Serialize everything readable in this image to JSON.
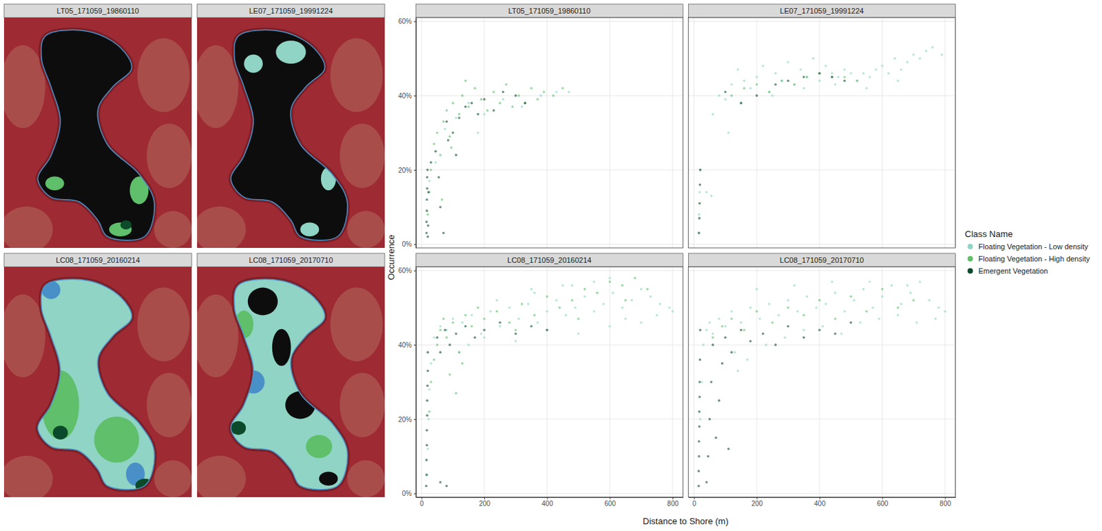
{
  "chart_data": {
    "type": "scatter",
    "x_label": "Distance to Shore (m)",
    "y_label": "Occurrence",
    "legend_title": "Class Name",
    "legend": "right",
    "grid": true,
    "xlim": [
      -18,
      833
    ],
    "ylim": [
      -1,
      61
    ],
    "xticks": [
      0,
      200,
      400,
      600,
      800
    ],
    "yticks": [
      {
        "value": 0,
        "label": "0%"
      },
      {
        "value": 20,
        "label": "20%"
      },
      {
        "value": 40,
        "label": "40%"
      },
      {
        "value": 60,
        "label": "60%"
      }
    ],
    "series": [
      {
        "name": "Floating Vegetation - Low density",
        "color": "#8fd4c4"
      },
      {
        "name": "Floating Vegetation - High density",
        "color": "#5fbf6a"
      },
      {
        "name": "Emergent Vegetation",
        "color": "#0b4a2a"
      }
    ],
    "panels": [
      {
        "title": "LT05_171059_19860110",
        "series": [
          {
            "x": [
              25,
              45,
              75,
              110,
              150,
              200,
              260,
              320,
              380,
              430,
              470,
              180
            ],
            "values": [
              17,
              22,
              31,
              34,
              38,
              35,
              39,
              37,
              40,
              41,
              41,
              30
            ]
          },
          {
            "x": [
              20,
              25,
              30,
              40,
              50,
              60,
              70,
              80,
              90,
              100,
              120,
              130,
              150,
              170,
              190,
              210,
              230,
              250,
              270,
              290,
              310,
              330,
              350,
              370,
              390,
              420,
              450,
              140,
              65,
              95
            ],
            "values": [
              8,
              14,
              20,
              27,
              30,
              24,
              33,
              36,
              29,
              38,
              35,
              40,
              37,
              42,
              39,
              36,
              41,
              38,
              43,
              37,
              40,
              38,
              42,
              39,
              41,
              40,
              42,
              44,
              12,
              26
            ]
          },
          {
            "x": [
              16,
              16,
              17,
              17,
              18,
              18,
              19,
              20,
              21,
              22,
              30,
              45,
              55,
              70,
              85,
              100,
              120,
              140,
              160,
              180,
              200,
              230,
              260,
              300,
              330,
              80,
              110,
              60
            ],
            "values": [
              3,
              6,
              9,
              12,
              15,
              18,
              20,
              2,
              5,
              14,
              22,
              25,
              18,
              3,
              28,
              30,
              34,
              37,
              38,
              35,
              39,
              36,
              41,
              40,
              38,
              33,
              24,
              10
            ]
          }
        ]
      },
      {
        "title": "LE07_171059_19991224",
        "series": [
          {
            "x": [
              15,
              16,
              18,
              20,
              40,
              55,
              60,
              80,
              100,
              120,
              140,
              160,
              180,
              200,
              220,
              240,
              260,
              280,
              300,
              320,
              340,
              360,
              380,
              400,
              420,
              440,
              460,
              480,
              500,
              520,
              540,
              560,
              580,
              600,
              620,
              640,
              660,
              680,
              700,
              720,
              740,
              760,
              790,
              150,
              250,
              350,
              450,
              550,
              650,
              110
            ],
            "values": [
              3,
              8,
              14,
              20,
              14,
              13,
              35,
              40,
              39,
              43,
              47,
              44,
              42,
              45,
              48,
              41,
              46,
              44,
              49,
              43,
              47,
              45,
              50,
              44,
              48,
              46,
              45,
              47,
              46,
              44,
              46,
              45,
              47,
              48,
              46,
              50,
              47,
              49,
              51,
              50,
              52,
              53,
              51,
              38,
              40,
              42,
              43,
              42,
              44,
              30
            ]
          },
          {
            "x": [
              120,
              160,
              200,
              240,
              280,
              320,
              360,
              400,
              440,
              480,
              520
            ],
            "values": [
              40,
              42,
              43,
              41,
              44,
              43,
              45,
              46,
              45,
              45,
              44
            ]
          },
          {
            "x": [
              16,
              17,
              18,
              19,
              20,
              100,
              150,
              200,
              260,
              300,
              350,
              400,
              440,
              480
            ],
            "values": [
              3,
              7,
              11,
              16,
              20,
              41,
              38,
              40,
              43,
              44,
              45,
              46,
              45,
              44
            ]
          }
        ]
      },
      {
        "title": "LC08_171059_20160214",
        "series": [
          {
            "x": [
              18,
              20,
              22,
              25,
              30,
              40,
              60,
              80,
              100,
              130,
              160,
              190,
              220,
              250,
              280,
              310,
              340,
              370,
              400,
              430,
              460,
              490,
              520,
              550,
              580,
              610,
              640,
              670,
              700,
              730,
              760,
              790,
              800,
              150,
              200,
              300,
              400,
              500,
              600,
              700,
              350,
              450,
              550,
              650,
              750,
              120,
              240,
              360,
              480,
              600
            ],
            "values": [
              5,
              12,
              20,
              28,
              35,
              42,
              45,
              44,
              47,
              46,
              48,
              43,
              49,
              45,
              50,
              47,
              51,
              46,
              49,
              52,
              48,
              50,
              53,
              49,
              51,
              54,
              50,
              52,
              55,
              53,
              51,
              50,
              49,
              40,
              42,
              41,
              44,
              43,
              45,
              46,
              55,
              56,
              57,
              47,
              48,
              38,
              52,
              54,
              56,
              58
            ]
          },
          {
            "x": [
              25,
              30,
              40,
              50,
              60,
              70,
              80,
              100,
              120,
              140,
              160,
              180,
              200,
              240,
              280,
              320,
              360,
              400,
              440,
              480,
              520,
              560,
              600,
              640,
              680,
              720,
              90,
              110,
              130,
              300,
              500,
              650
            ],
            "values": [
              22,
              30,
              36,
              40,
              44,
              47,
              42,
              46,
              38,
              48,
              45,
              50,
              47,
              49,
              46,
              51,
              48,
              53,
              50,
              52,
              55,
              54,
              57,
              56,
              58,
              55,
              32,
              27,
              35,
              44,
              47,
              52
            ]
          },
          {
            "x": [
              15,
              16,
              16,
              17,
              17,
              18,
              18,
              19,
              20,
              20,
              50,
              60,
              75,
              90,
              110,
              140,
              170,
              200,
              250,
              300,
              350,
              400,
              60,
              80
            ],
            "values": [
              2,
              5,
              9,
              13,
              17,
              21,
              25,
              29,
              33,
              38,
              42,
              38,
              44,
              40,
              43,
              45,
              42,
              44,
              46,
              43,
              45,
              44,
              3,
              2
            ]
          }
        ]
      },
      {
        "title": "LC08_171059_20170710",
        "series": [
          {
            "x": [
              20,
              25,
              30,
              40,
              50,
              60,
              80,
              100,
              120,
              150,
              180,
              210,
              240,
              270,
              300,
              330,
              360,
              390,
              420,
              450,
              480,
              510,
              540,
              570,
              600,
              630,
              660,
              690,
              720,
              750,
              780,
              800,
              130,
              170,
              230,
              290,
              350,
              410,
              470,
              530,
              590,
              650,
              710,
              770,
              200,
              320,
              440,
              560,
              680,
              140
            ],
            "values": [
              20,
              30,
              40,
              44,
              46,
              43,
              47,
              45,
              49,
              46,
              50,
              47,
              51,
              48,
              52,
              49,
              53,
              50,
              51,
              54,
              49,
              52,
              55,
              50,
              53,
              56,
              51,
              54,
              57,
              52,
              50,
              49,
              38,
              36,
              40,
              42,
              44,
              45,
              43,
              46,
              47,
              48,
              46,
              47,
              55,
              56,
              57,
              57,
              56,
              33
            ]
          },
          {
            "x": [
              60,
              90,
              120,
              160,
              200,
              250,
              300,
              350,
              400,
              450,
              500,
              550,
              600,
              650,
              700
            ],
            "values": [
              42,
              45,
              47,
              44,
              49,
              46,
              50,
              48,
              52,
              47,
              53,
              49,
              55,
              50,
              52
            ]
          },
          {
            "x": [
              15,
              15,
              16,
              16,
              17,
              17,
              18,
              18,
              19,
              20,
              40,
              45,
              50,
              55,
              60,
              70,
              80,
              100,
              120,
              150,
              180,
              220,
              260,
              300,
              350,
              400,
              450,
              500,
              90,
              110
            ],
            "values": [
              2,
              6,
              10,
              14,
              18,
              22,
              26,
              30,
              36,
              44,
              3,
              10,
              20,
              30,
              40,
              15,
              25,
              42,
              38,
              44,
              41,
              43,
              40,
              45,
              42,
              44,
              43,
              46,
              35,
              12
            ]
          }
        ]
      }
    ]
  },
  "maps": [
    {
      "title": "LT05_171059_19860110"
    },
    {
      "title": "LE07_171059_19991224"
    },
    {
      "title": "LC08_171059_20160214"
    },
    {
      "title": "LC08_171059_20170710"
    }
  ]
}
